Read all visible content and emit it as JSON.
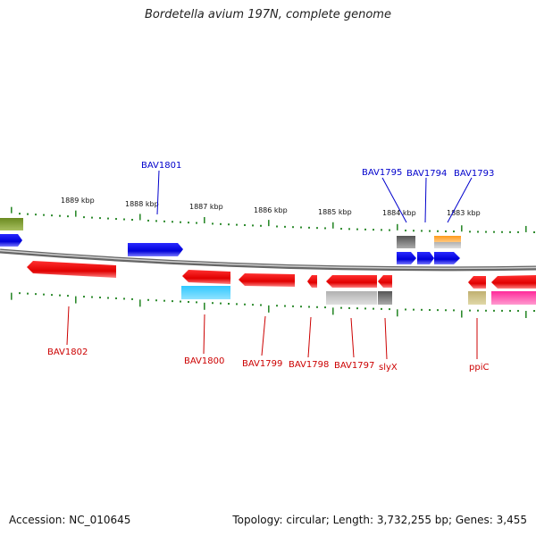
{
  "title": "Bordetella avium 197N, complete genome",
  "footer": {
    "accession": "Accession: NC_010645",
    "summary": "Topology: circular; Length: 3,732,255 bp; Genes: 3,455"
  },
  "colors": {
    "backbone": "#8a8a8a",
    "tick": "#2e8b2e",
    "forward_label": "#0000cc",
    "reverse_label": "#cc0000"
  },
  "kbp_labels": [
    "1889 kbp",
    "1888 kbp",
    "1887 kbp",
    "1886 kbp",
    "1885 kbp",
    "1884 kbp",
    "1883 kbp"
  ],
  "forward_gene_labels": [
    "BAV1801",
    "BAV1795",
    "BAV1794",
    "BAV1793"
  ],
  "reverse_gene_labels": [
    "BAV1802",
    "BAV1800",
    "BAV1799",
    "BAV1798",
    "BAV1797",
    "slyX",
    "ppiC"
  ]
}
